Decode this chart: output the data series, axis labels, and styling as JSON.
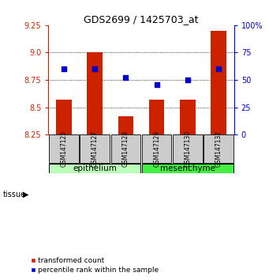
{
  "title": "GDS2699 / 1425703_at",
  "samples": [
    "GSM147125",
    "GSM147127",
    "GSM147128",
    "GSM147129",
    "GSM147130",
    "GSM147132"
  ],
  "bar_values": [
    8.57,
    9.0,
    8.42,
    8.57,
    8.57,
    9.2
  ],
  "percentile_values": [
    60,
    60,
    52,
    46,
    50,
    60
  ],
  "ylim_left": [
    8.25,
    9.25
  ],
  "ylim_right": [
    0,
    100
  ],
  "yticks_left": [
    8.25,
    8.5,
    8.75,
    9.0,
    9.25
  ],
  "yticks_right": [
    0,
    25,
    50,
    75,
    100
  ],
  "ytick_labels_right": [
    "0",
    "25",
    "50",
    "75",
    "100%"
  ],
  "grid_lines": [
    8.5,
    8.75,
    9.0
  ],
  "bar_color": "#cc2200",
  "dot_color": "#0000cc",
  "tissue_groups": [
    {
      "label": "epithelium",
      "indices": [
        0,
        1,
        2
      ],
      "color": "#bbffbb"
    },
    {
      "label": "mesenchyme",
      "indices": [
        3,
        4,
        5
      ],
      "color": "#44ee44"
    }
  ],
  "tissue_label": "tissue",
  "bar_width": 0.5,
  "sample_box_color": "#cccccc",
  "legend_bar_label": "transformed count",
  "legend_dot_label": "percentile rank within the sample"
}
